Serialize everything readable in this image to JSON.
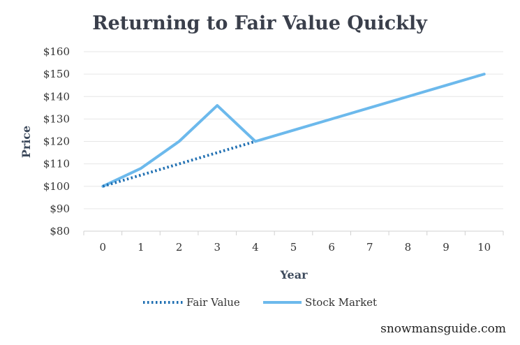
{
  "chart_data": {
    "type": "line",
    "title": "Returning to Fair Value Quickly",
    "xlabel": "Year",
    "ylabel": "Price",
    "x": [
      0,
      1,
      2,
      3,
      4,
      5,
      6,
      7,
      8,
      9,
      10
    ],
    "x_tick_labels": [
      "0",
      "1",
      "2",
      "3",
      "4",
      "5",
      "6",
      "7",
      "8",
      "9",
      "10"
    ],
    "ylim": [
      80,
      160
    ],
    "y_ticks": [
      80,
      90,
      100,
      110,
      120,
      130,
      140,
      150,
      160
    ],
    "y_tick_labels": [
      "$80",
      "$90",
      "$100",
      "$110",
      "$120",
      "$130",
      "$140",
      "$150",
      "$160"
    ],
    "grid": true,
    "legend_position": "bottom",
    "series": [
      {
        "name": "Fair Value",
        "style": "dotted",
        "color": "#1f6fb2",
        "x": [
          0,
          1,
          2,
          3,
          4
        ],
        "values": [
          100,
          105,
          110,
          115,
          120
        ]
      },
      {
        "name": "Stock Market",
        "style": "solid",
        "color": "#6cb9ec",
        "x": [
          0,
          1,
          2,
          3,
          4,
          5,
          6,
          7,
          8,
          9,
          10
        ],
        "values": [
          100,
          108,
          120,
          136,
          120,
          125,
          130,
          135,
          140,
          145,
          150
        ]
      }
    ]
  },
  "watermark": "snowmansguide.com"
}
